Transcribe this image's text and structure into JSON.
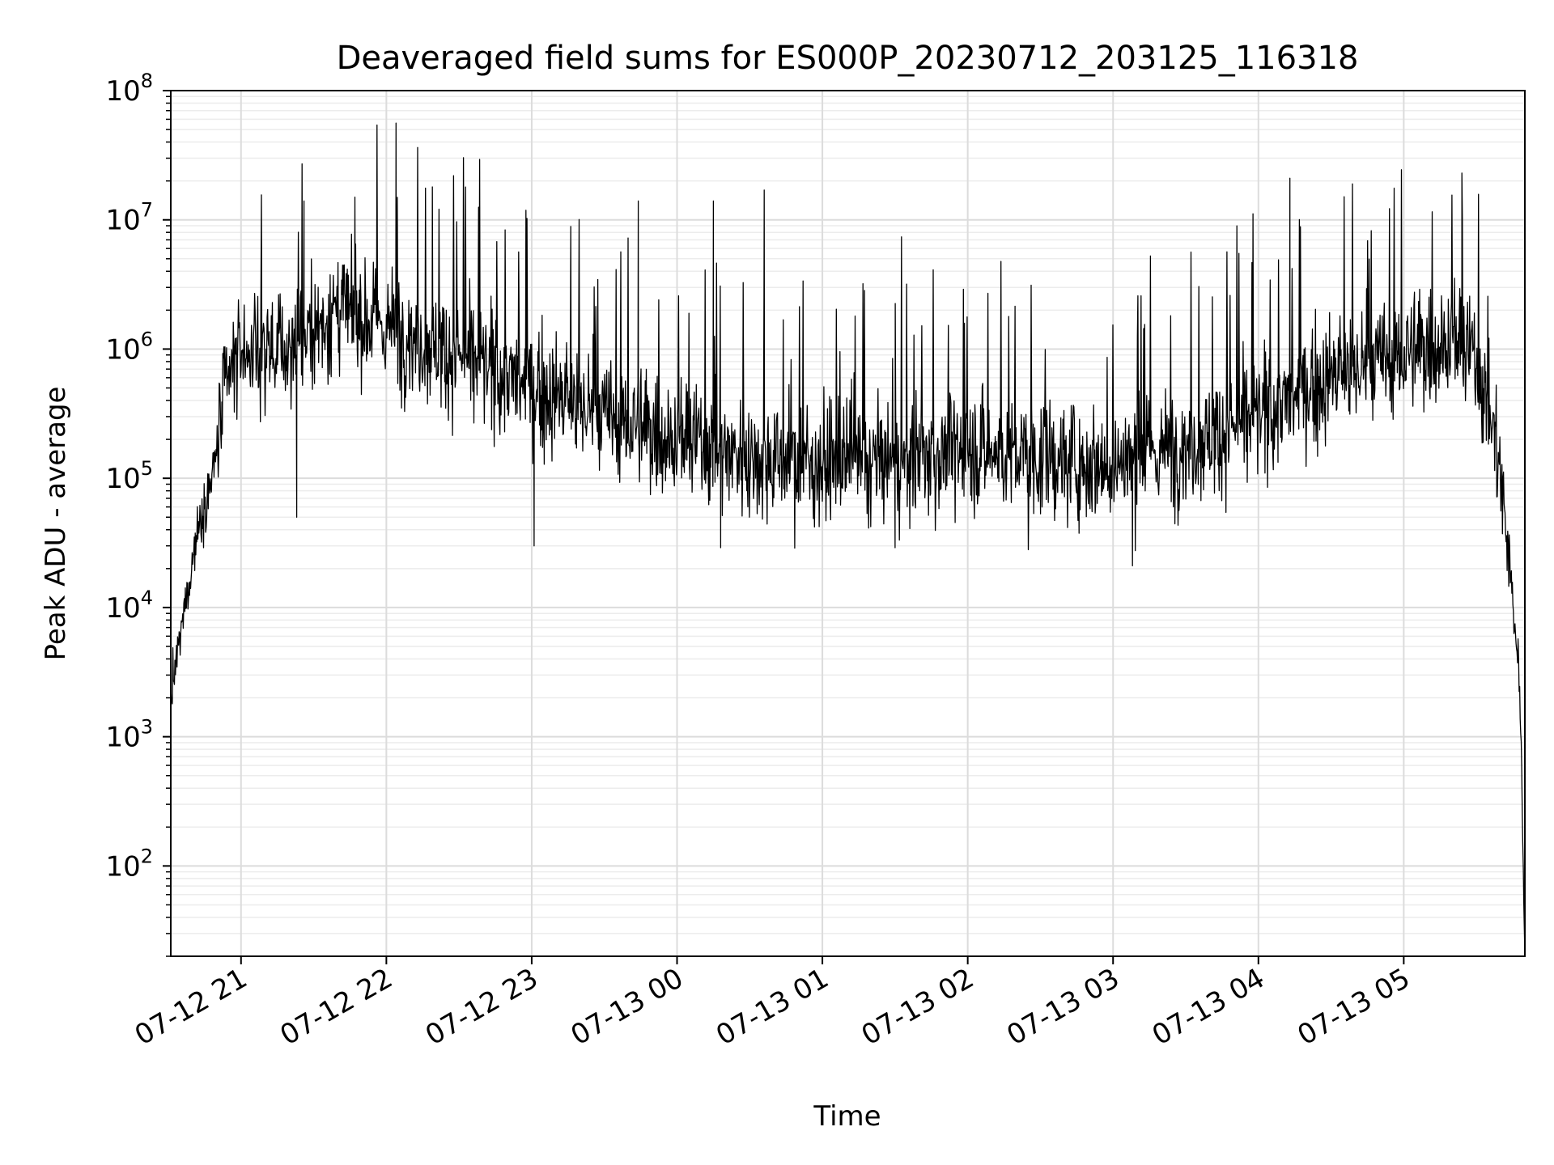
{
  "chart_data": {
    "type": "line",
    "title": "Deaveraged field sums for ES000P_20230712_203125_116318",
    "xlabel": "Time",
    "ylabel": "Peak ADU - average",
    "yscale": "log",
    "ylim": [
      20,
      100000000
    ],
    "xlim": [
      "2023-07-12 20:31",
      "2023-07-13 05:50"
    ],
    "grid": true,
    "line_color": "#000000",
    "x_ticks": [
      {
        "value": "2023-07-12 21:00",
        "label": "07-12 21"
      },
      {
        "value": "2023-07-12 22:00",
        "label": "07-12 22"
      },
      {
        "value": "2023-07-12 23:00",
        "label": "07-12 23"
      },
      {
        "value": "2023-07-13 00:00",
        "label": "07-13 00"
      },
      {
        "value": "2023-07-13 01:00",
        "label": "07-13 01"
      },
      {
        "value": "2023-07-13 02:00",
        "label": "07-13 02"
      },
      {
        "value": "2023-07-13 03:00",
        "label": "07-13 03"
      },
      {
        "value": "2023-07-13 04:00",
        "label": "07-13 04"
      },
      {
        "value": "2023-07-13 05:00",
        "label": "07-13 05"
      }
    ],
    "y_ticks": [
      {
        "value": 100,
        "base": "10",
        "exp": "2"
      },
      {
        "value": 1000,
        "base": "10",
        "exp": "3"
      },
      {
        "value": 10000,
        "base": "10",
        "exp": "4"
      },
      {
        "value": 100000,
        "base": "10",
        "exp": "5"
      },
      {
        "value": 1000000,
        "base": "10",
        "exp": "6"
      },
      {
        "value": 10000000,
        "base": "10",
        "exp": "7"
      },
      {
        "value": 100000000,
        "base": "10",
        "exp": "8"
      }
    ],
    "series": [
      {
        "envelope": [
          {
            "x": "2023-07-12 20:31",
            "y": 2000
          },
          {
            "x": "2023-07-12 20:36",
            "y": 8000
          },
          {
            "x": "2023-07-12 20:42",
            "y": 40000
          },
          {
            "x": "2023-07-12 20:48",
            "y": 100000
          },
          {
            "x": "2023-07-12 20:54",
            "y": 500000
          },
          {
            "x": "2023-07-12 21:00",
            "y": 1000000
          },
          {
            "x": "2023-07-12 21:20",
            "y": 1000000
          },
          {
            "x": "2023-07-12 21:40",
            "y": 2000000
          },
          {
            "x": "2023-07-12 22:00",
            "y": 1500000
          },
          {
            "x": "2023-07-12 22:30",
            "y": 900000
          },
          {
            "x": "2023-07-12 23:00",
            "y": 500000
          },
          {
            "x": "2023-07-12 23:30",
            "y": 300000
          },
          {
            "x": "2023-07-13 00:00",
            "y": 200000
          },
          {
            "x": "2023-07-13 00:30",
            "y": 150000
          },
          {
            "x": "2023-07-13 01:00",
            "y": 130000
          },
          {
            "x": "2023-07-13 01:30",
            "y": 130000
          },
          {
            "x": "2023-07-13 02:00",
            "y": 170000
          },
          {
            "x": "2023-07-13 02:30",
            "y": 140000
          },
          {
            "x": "2023-07-13 03:00",
            "y": 130000
          },
          {
            "x": "2023-07-13 03:30",
            "y": 180000
          },
          {
            "x": "2023-07-13 04:00",
            "y": 300000
          },
          {
            "x": "2023-07-13 04:30",
            "y": 600000
          },
          {
            "x": "2023-07-13 05:00",
            "y": 900000
          },
          {
            "x": "2023-07-13 05:20",
            "y": 1200000
          },
          {
            "x": "2023-07-13 05:30",
            "y": 800000
          },
          {
            "x": "2023-07-13 05:38",
            "y": 200000
          },
          {
            "x": "2023-07-13 05:43",
            "y": 30000
          },
          {
            "x": "2023-07-13 05:48",
            "y": 2500
          },
          {
            "x": "2023-07-13 05:50",
            "y": 20
          }
        ],
        "peaks": [
          {
            "x": "2023-07-12 21:26",
            "y": 14000000
          },
          {
            "x": "2023-07-12 21:47",
            "y": 15000000
          },
          {
            "x": "2023-07-12 22:04",
            "y": 56000000
          },
          {
            "x": "2023-07-12 22:19",
            "y": 18000000
          },
          {
            "x": "2023-07-12 23:44",
            "y": 14000000
          },
          {
            "x": "2023-07-13 00:15",
            "y": 14000000
          },
          {
            "x": "2023-07-13 00:36",
            "y": 17000000
          },
          {
            "x": "2023-07-13 04:13",
            "y": 21000000
          },
          {
            "x": "2023-07-13 05:24",
            "y": 23000000
          }
        ],
        "troughs": [
          {
            "x": "2023-07-12 21:23",
            "y": 50000
          },
          {
            "x": "2023-07-12 23:01",
            "y": 30000
          },
          {
            "x": "2023-07-13 00:18",
            "y": 29000
          },
          {
            "x": "2023-07-13 01:30",
            "y": 29000
          },
          {
            "x": "2023-07-13 02:25",
            "y": 28000
          },
          {
            "x": "2023-07-13 03:08",
            "y": 21000
          }
        ]
      }
    ]
  }
}
